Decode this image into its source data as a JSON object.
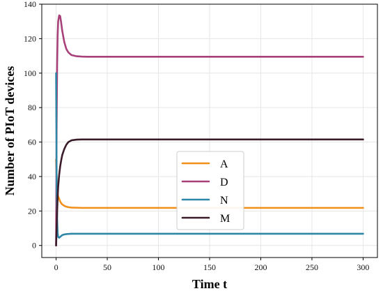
{
  "chart_data": {
    "type": "line",
    "title": "",
    "xlabel": "Time t",
    "ylabel": "Number of PIoT devices",
    "xlim": [
      -14,
      314
    ],
    "ylim": [
      -7,
      140
    ],
    "xticks": [
      0,
      50,
      100,
      150,
      200,
      250,
      300
    ],
    "yticks": [
      0,
      20,
      40,
      60,
      80,
      100,
      120,
      140
    ],
    "grid": true,
    "legend_position": "center-bottom",
    "x": [
      0,
      0.5,
      1,
      1.5,
      2,
      3,
      4,
      5,
      6,
      8,
      10,
      12,
      15,
      20,
      25,
      30,
      40,
      50,
      75,
      100,
      150,
      200,
      250,
      300
    ],
    "series": [
      {
        "name": "A",
        "color": "#f0901a",
        "values": [
          50,
          40,
          33,
          30,
          28.5,
          27,
          25.5,
          24.5,
          23.8,
          23,
          22.5,
          22.2,
          22,
          21.9,
          21.8,
          21.8,
          21.8,
          21.8,
          21.8,
          21.8,
          21.8,
          21.8,
          21.8,
          21.8
        ]
      },
      {
        "name": "D",
        "color": "#a8417a",
        "values": [
          0,
          70,
          105,
          122,
          130,
          133.5,
          133,
          129,
          124.5,
          118,
          114,
          112,
          110.5,
          109.8,
          109.6,
          109.5,
          109.5,
          109.5,
          109.5,
          109.5,
          109.5,
          109.5,
          109.5,
          109.5
        ]
      },
      {
        "name": "N",
        "color": "#2e86a8",
        "values": [
          100,
          40,
          15,
          7,
          5,
          4.5,
          5,
          5.5,
          6,
          6.4,
          6.6,
          6.7,
          6.8,
          6.8,
          6.8,
          6.8,
          6.8,
          6.8,
          6.8,
          6.8,
          6.8,
          6.8,
          6.8,
          6.8
        ]
      },
      {
        "name": "M",
        "color": "#3a1b2a",
        "values": [
          0,
          10,
          20,
          28,
          34,
          41,
          46,
          49.5,
          52.5,
          56,
          58.5,
          60,
          61,
          61.4,
          61.5,
          61.5,
          61.5,
          61.5,
          61.5,
          61.5,
          61.5,
          61.5,
          61.5,
          61.5
        ]
      }
    ]
  }
}
